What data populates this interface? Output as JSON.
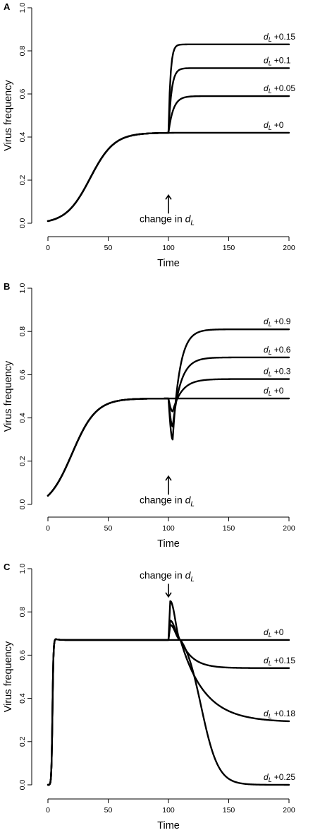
{
  "figure": {
    "panels": [
      {
        "letter": "A",
        "xlabel": "Time",
        "ylabel": "Virus frequency",
        "xticks": [
          "0",
          "50",
          "100",
          "150",
          "200"
        ],
        "yticks": [
          "0.0",
          "0.2",
          "0.4",
          "0.6",
          "0.8",
          "1.0"
        ],
        "annotation": {
          "text": "change in ",
          "var": "d",
          "sub": "L",
          "arrow": "up"
        },
        "series_labels": [
          {
            "var": "d",
            "sub": "L",
            "suffix": "+0.15"
          },
          {
            "var": "d",
            "sub": "L",
            "suffix": "+0.1"
          },
          {
            "var": "d",
            "sub": "L",
            "suffix": "+0.05"
          },
          {
            "var": "d",
            "sub": "L",
            "suffix": "+0"
          }
        ]
      },
      {
        "letter": "B",
        "xlabel": "Time",
        "ylabel": "Virus frequency",
        "xticks": [
          "0",
          "50",
          "100",
          "150",
          "200"
        ],
        "yticks": [
          "0.0",
          "0.2",
          "0.4",
          "0.6",
          "0.8",
          "1.0"
        ],
        "annotation": {
          "text": "change in ",
          "var": "d",
          "sub": "L",
          "arrow": "up"
        },
        "series_labels": [
          {
            "var": "d",
            "sub": "L",
            "suffix": "+0.9"
          },
          {
            "var": "d",
            "sub": "L",
            "suffix": "+0.6"
          },
          {
            "var": "d",
            "sub": "L",
            "suffix": "+0.3"
          },
          {
            "var": "d",
            "sub": "L",
            "suffix": "+0"
          }
        ]
      },
      {
        "letter": "C",
        "xlabel": "Time",
        "ylabel": "Virus frequency",
        "xticks": [
          "0",
          "50",
          "100",
          "150",
          "200"
        ],
        "yticks": [
          "0.0",
          "0.2",
          "0.4",
          "0.6",
          "0.8",
          "1.0"
        ],
        "annotation": {
          "text": "change in ",
          "var": "d",
          "sub": "L",
          "arrow": "down"
        },
        "series_labels": [
          {
            "var": "d",
            "sub": "L",
            "suffix": "+0"
          },
          {
            "var": "d",
            "sub": "L",
            "suffix": "+0.15"
          },
          {
            "var": "d",
            "sub": "L",
            "suffix": "+0.18"
          },
          {
            "var": "d",
            "sub": "L",
            "suffix": "+0.25"
          }
        ]
      }
    ]
  },
  "chart_data": [
    {
      "type": "line",
      "xlabel": "Time",
      "ylabel": "Virus frequency",
      "xlim": [
        0,
        200
      ],
      "ylim": [
        0,
        1
      ],
      "change_time": 100,
      "baseline": {
        "start": 0.01,
        "plateau": 0.42,
        "midpoint": 35,
        "rate": 0.1
      },
      "series": [
        {
          "name": "dL +0.15",
          "final": 0.83,
          "rate": 0.6
        },
        {
          "name": "dL +0.1",
          "final": 0.72,
          "rate": 0.4
        },
        {
          "name": "dL +0.05",
          "final": 0.59,
          "rate": 0.25
        },
        {
          "name": "dL +0",
          "final": 0.42,
          "rate": 0.2
        }
      ]
    },
    {
      "type": "line",
      "xlabel": "Time",
      "ylabel": "Virus frequency",
      "xlim": [
        0,
        200
      ],
      "ylim": [
        0,
        1
      ],
      "change_time": 100,
      "baseline": {
        "start": 0.04,
        "plateau": 0.49,
        "midpoint": 20,
        "rate": 0.1
      },
      "series": [
        {
          "name": "dL +0.9",
          "final": 0.81,
          "dip": 0.3,
          "rate": 0.17
        },
        {
          "name": "dL +0.6",
          "final": 0.68,
          "dip": 0.36,
          "rate": 0.15
        },
        {
          "name": "dL +0.3",
          "final": 0.58,
          "dip": 0.43,
          "rate": 0.13
        },
        {
          "name": "dL +0",
          "final": 0.49,
          "dip": 0.49,
          "rate": 0.2
        }
      ]
    },
    {
      "type": "line",
      "xlabel": "Time",
      "ylabel": "Virus frequency",
      "xlim": [
        0,
        200
      ],
      "ylim": [
        0,
        1
      ],
      "change_time": 100,
      "baseline": {
        "start": 0.0,
        "plateau": 0.67,
        "overshoot": 0.675,
        "rise_end": 6
      },
      "series": [
        {
          "name": "dL +0",
          "final": 0.67,
          "peak": 0.67
        },
        {
          "name": "dL +0.15",
          "final": 0.54,
          "peak": 0.74,
          "rate": 0.1
        },
        {
          "name": "dL +0.18",
          "final": 0.29,
          "peak": 0.76,
          "rate": 0.05
        },
        {
          "name": "dL +0.25",
          "final": 0.0,
          "peak": 0.85,
          "rate": 0.14
        }
      ]
    }
  ]
}
